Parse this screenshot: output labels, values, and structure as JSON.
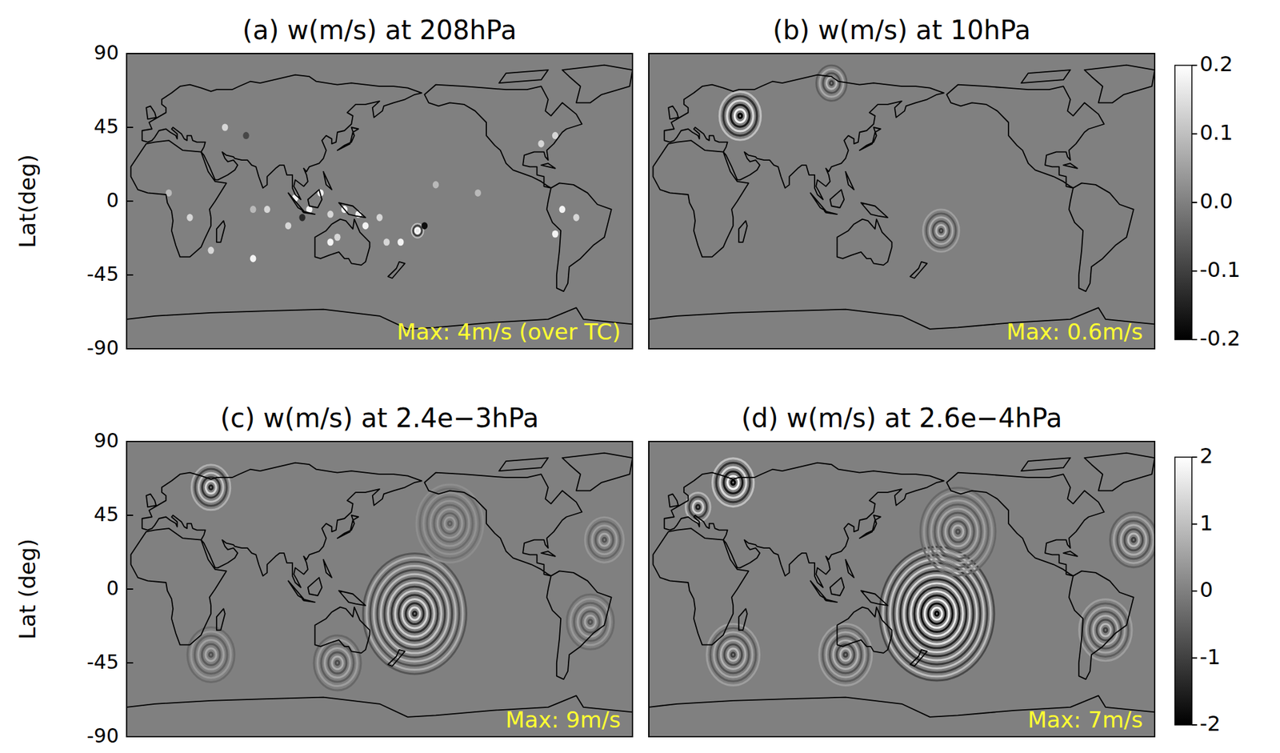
{
  "chart_data": [
    {
      "type": "heatmap",
      "title": "(a) w(m/s) at 208hPa",
      "ylabel": "Lat(deg)",
      "xlim": [
        -20,
        340
      ],
      "ylim": [
        -90,
        90
      ],
      "yticks": [
        90,
        45,
        0,
        -45,
        -90
      ],
      "tick_labels": "y",
      "annotation": "Max: 4m/s (over TC)",
      "spots": [
        {
          "lon": 100,
          "lat": 2,
          "value": 0.2
        },
        {
          "lon": 110,
          "lat": -5,
          "value": 0.2
        },
        {
          "lon": 118,
          "lat": 5,
          "value": 0.2
        },
        {
          "lon": 125,
          "lat": -8,
          "value": 0.15
        },
        {
          "lon": 135,
          "lat": -5,
          "value": 0.2
        },
        {
          "lon": 145,
          "lat": -8,
          "value": 0.2
        },
        {
          "lon": 150,
          "lat": -15,
          "value": 0.2
        },
        {
          "lon": 160,
          "lat": -10,
          "value": 0.15
        },
        {
          "lon": 105,
          "lat": -10,
          "value": -0.15
        },
        {
          "lon": 95,
          "lat": -15,
          "value": 0.15
        },
        {
          "lon": 80,
          "lat": -5,
          "value": 0.15
        },
        {
          "lon": 70,
          "lat": -5,
          "value": 0.1
        },
        {
          "lon": 125,
          "lat": -25,
          "value": 0.2
        },
        {
          "lon": 130,
          "lat": -22,
          "value": 0.15
        },
        {
          "lon": 187,
          "lat": -18,
          "value": 0.2
        },
        {
          "lon": 192,
          "lat": -15,
          "value": -0.2
        },
        {
          "lon": 175,
          "lat": -25,
          "value": 0.2
        },
        {
          "lon": 165,
          "lat": -25,
          "value": 0.15
        },
        {
          "lon": 200,
          "lat": 10,
          "value": 0.1
        },
        {
          "lon": 230,
          "lat": 5,
          "value": 0.1
        },
        {
          "lon": 290,
          "lat": -5,
          "value": 0.2
        },
        {
          "lon": 300,
          "lat": -10,
          "value": 0.15
        },
        {
          "lon": 285,
          "lat": -20,
          "value": 0.2
        },
        {
          "lon": 275,
          "lat": 35,
          "value": 0.15
        },
        {
          "lon": 285,
          "lat": 40,
          "value": 0.15
        },
        {
          "lon": 25,
          "lat": -10,
          "value": 0.15
        },
        {
          "lon": 10,
          "lat": 5,
          "value": 0.1
        },
        {
          "lon": 50,
          "lat": 45,
          "value": 0.15
        },
        {
          "lon": 65,
          "lat": 40,
          "value": -0.1
        },
        {
          "lon": 40,
          "lat": -30,
          "value": 0.15
        },
        {
          "lon": 70,
          "lat": -35,
          "value": 0.2
        }
      ],
      "wave_packets": [
        {
          "lon": 187,
          "lat": -18,
          "radius": 5,
          "amplitude": 0.2
        }
      ]
    },
    {
      "type": "heatmap",
      "title": "(b) w(m/s) at 10hPa",
      "xlim": [
        -20,
        340
      ],
      "ylim": [
        -90,
        90
      ],
      "tick_labels": false,
      "annotation": "Max: 0.6m/s",
      "wave_packets": [
        {
          "lon": 188,
          "lat": -18,
          "radius": 14,
          "amplitude": 0.1
        },
        {
          "lon": 45,
          "lat": 52,
          "radius": 16,
          "amplitude": 0.2
        },
        {
          "lon": 110,
          "lat": 72,
          "radius": 12,
          "amplitude": 0.1
        }
      ],
      "colorbar": {
        "range": [
          -0.2,
          0.2
        ],
        "ticks": [
          0.2,
          0.1,
          {
            "value": 0,
            "label": "0.0"
          },
          -0.1,
          -0.2
        ]
      }
    },
    {
      "type": "heatmap",
      "title": "(c) w(m/s) at 2.4e−3hPa",
      "ylabel": "Lat (deg)",
      "xlim": [
        -20,
        340
      ],
      "ylim": [
        -90,
        90
      ],
      "yticks": [
        90,
        45,
        0,
        -45,
        -90
      ],
      "tick_labels": "y",
      "annotation": "Max: 9m/s",
      "wave_packets": [
        {
          "lon": 185,
          "lat": -15,
          "radius": 38,
          "amplitude": 1.5
        },
        {
          "lon": 40,
          "lat": 62,
          "radius": 15,
          "amplitude": 1.5
        },
        {
          "lon": 130,
          "lat": -45,
          "radius": 18,
          "amplitude": 0.8
        },
        {
          "lon": 310,
          "lat": -20,
          "radius": 18,
          "amplitude": 0.7
        },
        {
          "lon": 40,
          "lat": -40,
          "radius": 18,
          "amplitude": 0.7
        },
        {
          "lon": 320,
          "lat": 30,
          "radius": 15,
          "amplitude": 0.7
        },
        {
          "lon": 210,
          "lat": 40,
          "radius": 25,
          "amplitude": 0.5
        }
      ]
    },
    {
      "type": "heatmap",
      "title": "(d) w(m/s) at 2.6e−4hPa",
      "xlim": [
        -20,
        340
      ],
      "ylim": [
        -90,
        90
      ],
      "tick_labels": false,
      "annotation": "Max: 7m/s",
      "wave_packets": [
        {
          "lon": 185,
          "lat": -15,
          "radius": 42,
          "amplitude": 2
        },
        {
          "lon": 40,
          "lat": 65,
          "radius": 16,
          "amplitude": 2
        },
        {
          "lon": 15,
          "lat": 50,
          "radius": 10,
          "amplitude": 1.5
        },
        {
          "lon": 120,
          "lat": -40,
          "radius": 20,
          "amplitude": 1
        },
        {
          "lon": 305,
          "lat": -25,
          "radius": 20,
          "amplitude": 1
        },
        {
          "lon": 40,
          "lat": -40,
          "radius": 20,
          "amplitude": 1
        },
        {
          "lon": 325,
          "lat": 30,
          "radius": 18,
          "amplitude": 1
        },
        {
          "lon": 200,
          "lat": 35,
          "radius": 28,
          "amplitude": 0.8
        }
      ],
      "colorbar": {
        "range": [
          -2,
          2
        ],
        "ticks": [
          2,
          1,
          0,
          -1,
          -2
        ]
      }
    }
  ]
}
